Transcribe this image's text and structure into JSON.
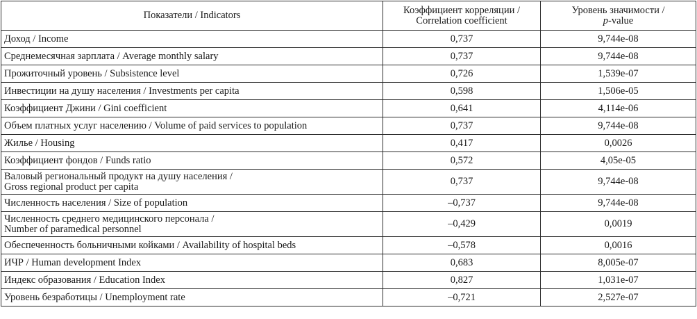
{
  "header": {
    "indicators": "Показатели / Indicators",
    "corr_line1": "Коэффициент корреляции /",
    "corr_line2": "Correlation coefficient",
    "pval_line1": "Уровень значимости /",
    "pval_p": "p",
    "pval_rest": "-value"
  },
  "rows": [
    {
      "l1": "Доход / Income",
      "l2": "",
      "corr": "0,737",
      "p": "9,744e-08"
    },
    {
      "l1": "Среднемесячная зарплата / Average monthly salary",
      "l2": "",
      "corr": "0,737",
      "p": "9,744e-08"
    },
    {
      "l1": "Прожиточный уровень / Subsistence level",
      "l2": "",
      "corr": "0,726",
      "p": "1,539e-07"
    },
    {
      "l1": "Инвестиции на душу населения / Investments per capita",
      "l2": "",
      "corr": "0,598",
      "p": "1,506e-05"
    },
    {
      "l1": "Коэффициент Джини / Gini coefficient",
      "l2": "",
      "corr": "0,641",
      "p": "4,114e-06"
    },
    {
      "l1": "Объем платных услуг населению / Volume of paid services to population",
      "l2": "",
      "corr": "0,737",
      "p": "9,744e-08"
    },
    {
      "l1": "Жилье / Housing",
      "l2": "",
      "corr": "0,417",
      "p": "0,0026"
    },
    {
      "l1": "Коэффициент фондов / Funds ratio",
      "l2": "",
      "corr": "0,572",
      "p": "4,05e-05"
    },
    {
      "l1": "Валовый региональный продукт на душу населения /",
      "l2": "Gross regional product per capita",
      "corr": "0,737",
      "p": "9,744e-08"
    },
    {
      "l1": "Численность населения / Size of population",
      "l2": "",
      "corr": "–0,737",
      "p": "9,744e-08"
    },
    {
      "l1": "Численность среднего медицинского персонала /",
      "l2": "Number of paramedical personnel",
      "corr": "–0,429",
      "p": "0,0019"
    },
    {
      "l1": "Обеспеченность больничными койками / Availability of hospital beds",
      "l2": "",
      "corr": "–0,578",
      "p": "0,0016"
    },
    {
      "l1": "ИЧР / Human development Index",
      "l2": "",
      "corr": "0,683",
      "p": "8,005e-07"
    },
    {
      "l1": "Индекс образования / Education Index",
      "l2": "",
      "corr": "0,827",
      "p": "1,031e-07"
    },
    {
      "l1": "Уровень безработицы / Unemployment rate",
      "l2": "",
      "corr": "–0,721",
      "p": "2,527e-07"
    }
  ]
}
